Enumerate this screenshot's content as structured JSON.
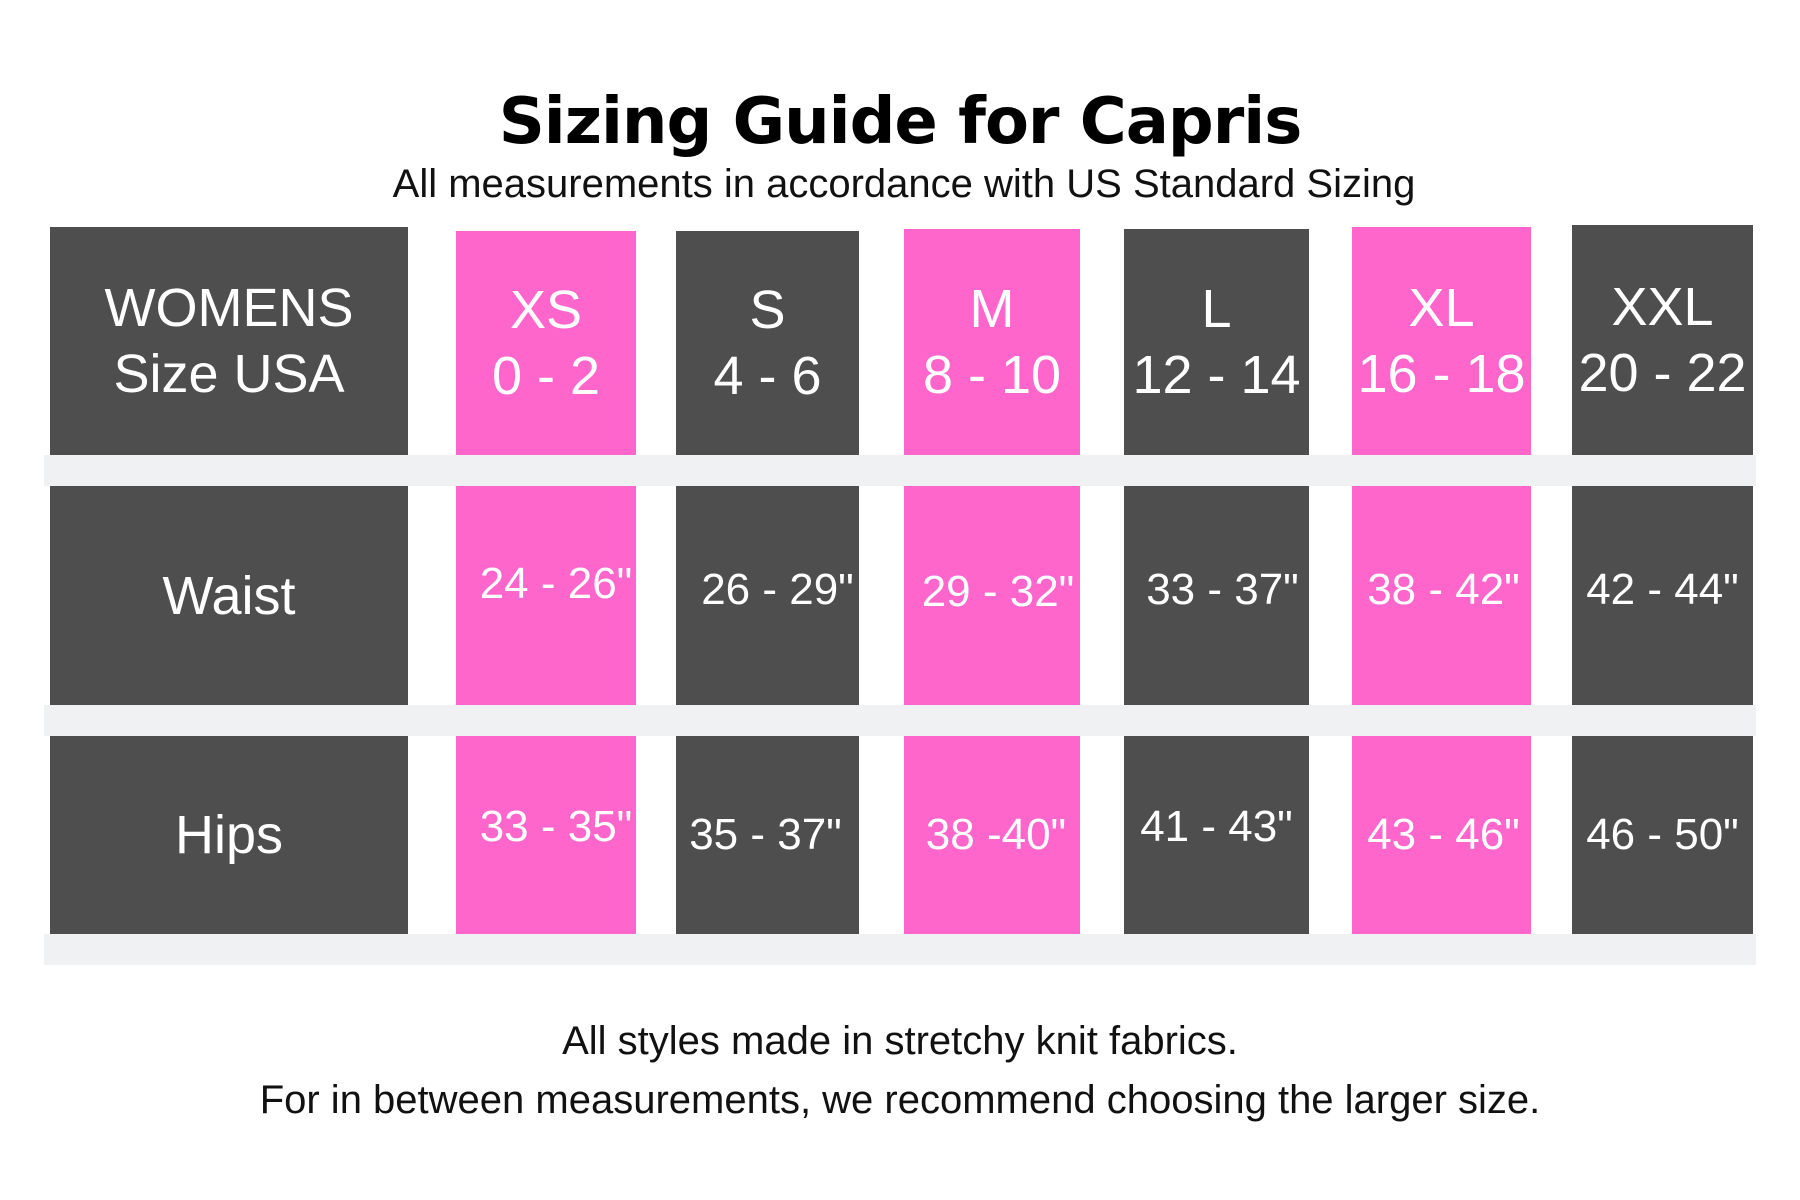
{
  "title": "Sizing Guide for Capris",
  "subtitle": "All measurements in accordance with US Standard Sizing",
  "header": {
    "label_line1": "WOMENS",
    "label_line2": "Size USA",
    "sizes": [
      {
        "name": "XS",
        "range": "0 - 2"
      },
      {
        "name": "S",
        "range": "4 - 6"
      },
      {
        "name": "M",
        "range": "8 - 10"
      },
      {
        "name": "L",
        "range": "12 - 14"
      },
      {
        "name": "XL",
        "range": "16 - 18"
      },
      {
        "name": "XXL",
        "range": "20 - 22"
      }
    ]
  },
  "waist": {
    "label": "Waist",
    "values": [
      "24 - 26\"",
      "26 - 29\"",
      "29 - 32\"",
      "33 - 37\"",
      "38 - 42\"",
      "42 - 44\""
    ]
  },
  "hips": {
    "label": "Hips",
    "values": [
      "33 - 35\"",
      "35 - 37\"",
      "38 -40\"",
      "41 - 43\"",
      "43 - 46\"",
      "46 - 50\""
    ]
  },
  "footer": {
    "line1": "All styles made in stretchy knit fabrics.",
    "line2": "For in between measurements, we recommend choosing the larger size."
  },
  "colors": {
    "dark": "#4e4e4e",
    "pink": "#ff66cc",
    "band": "#f0f1f2",
    "text_on_cell": "#ffffff"
  }
}
